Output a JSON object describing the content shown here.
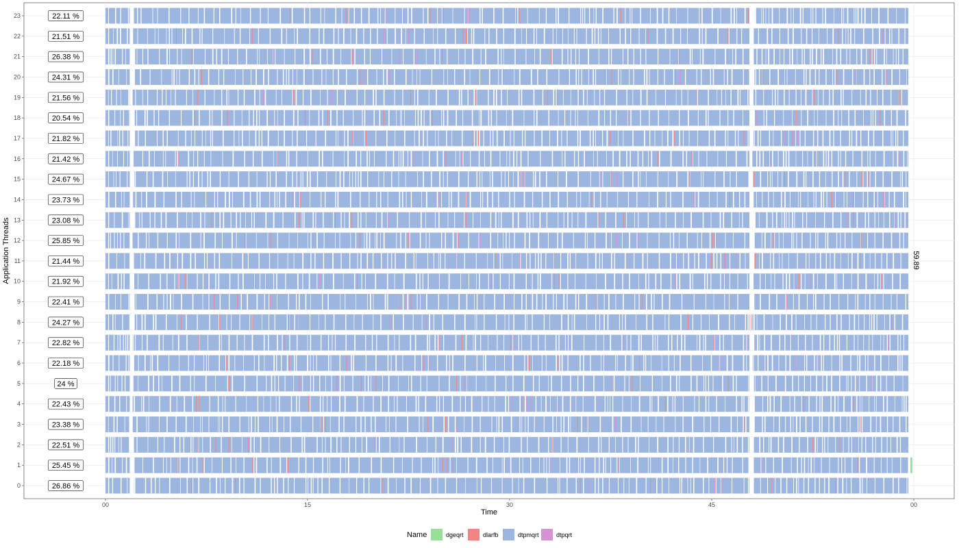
{
  "chart_data": {
    "type": "gantt",
    "xlabel": "Time",
    "ylabel": "Application Threads",
    "xlim": [
      0,
      60
    ],
    "x_ticks": [
      "00",
      "15",
      "30",
      "45",
      "00"
    ],
    "x_tick_values": [
      0,
      15,
      30,
      45,
      60
    ],
    "makespan_label": "59.89",
    "makespan_value": 59.89,
    "threads": [
      "0",
      "1",
      "2",
      "3",
      "4",
      "5",
      "6",
      "7",
      "8",
      "9",
      "10",
      "11",
      "12",
      "13",
      "14",
      "15",
      "16",
      "17",
      "18",
      "19",
      "20",
      "21",
      "22",
      "23"
    ],
    "utilization_labels": [
      "26.86 %",
      "25.45 %",
      "22.51 %",
      "23.38 %",
      "22.43 %",
      "24 %",
      "22.18 %",
      "22.82 %",
      "24.27 %",
      "22.41 %",
      "21.92 %",
      "21.44 %",
      "25.85 %",
      "23.08 %",
      "23.73 %",
      "24.67 %",
      "21.42 %",
      "21.82 %",
      "20.54 %",
      "21.56 %",
      "24.31 %",
      "26.38 %",
      "21.51 %",
      "22.11 %"
    ],
    "legend": {
      "title": "Name",
      "position": "bottom",
      "entries": [
        {
          "label": "dgeqrt",
          "color": "#98df9a"
        },
        {
          "label": "dlarfb",
          "color": "#f28584"
        },
        {
          "label": "dtpmqrt",
          "color": "#9db6e0"
        },
        {
          "label": "dtpqrt",
          "color": "#d494d3"
        }
      ]
    },
    "series_spans": [
      {
        "name": "dtpmqrt",
        "start": 0.0,
        "end": 59.6
      },
      {
        "name": "dlarfb",
        "start": 0.0,
        "end": 59.6
      },
      {
        "name": "dgeqrt",
        "start": 0.0,
        "end": 59.89
      },
      {
        "name": "dtpqrt",
        "start": 0.0,
        "end": 59.6
      }
    ],
    "grid": true
  }
}
